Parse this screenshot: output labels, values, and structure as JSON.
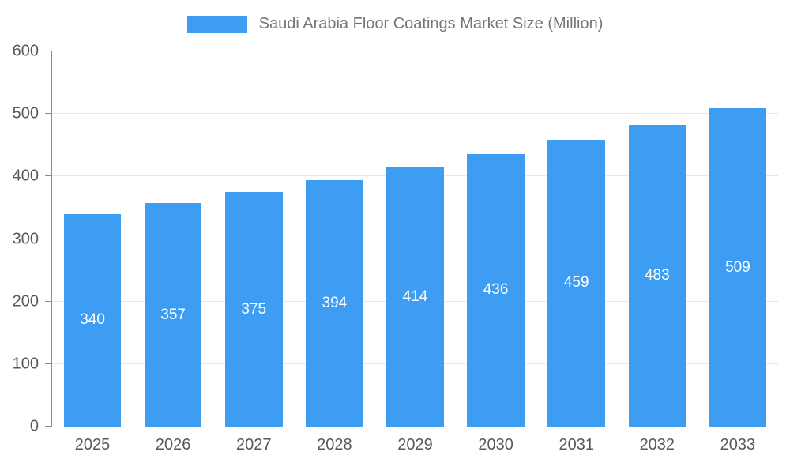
{
  "legend": {
    "title": "Saudi Arabia Floor Coatings Market Size (Million)"
  },
  "chart_data": {
    "type": "bar",
    "title": "Saudi Arabia Floor Coatings Market Size (Million)",
    "categories": [
      "2025",
      "2026",
      "2027",
      "2028",
      "2029",
      "2030",
      "2031",
      "2032",
      "2033"
    ],
    "values": [
      340,
      357,
      375,
      394,
      414,
      436,
      459,
      483,
      509
    ],
    "xlabel": "",
    "ylabel": "",
    "ylim": [
      0,
      600
    ],
    "yticks": [
      0,
      100,
      200,
      300,
      400,
      500,
      600
    ],
    "grid": true,
    "legend_position": "top",
    "bar_color": "#3d9df3",
    "bar_label_color": "#ffffff",
    "axis_color": "#8a8a8a",
    "tick_label_color": "#595959",
    "title_color": "#757575",
    "gridline_color": "#e6e6e6"
  }
}
